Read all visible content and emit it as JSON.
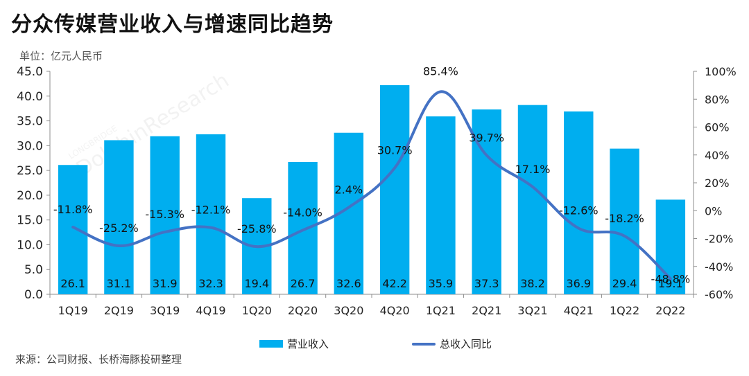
{
  "title": "分众传媒营业收入与增速同比趋势",
  "unit": "单位：亿元人民币",
  "source": "来源：公司财报、长桥海豚投研整理",
  "chart_data": {
    "type": "bar",
    "categories": [
      "1Q19",
      "2Q19",
      "3Q19",
      "4Q19",
      "1Q20",
      "2Q20",
      "3Q20",
      "4Q20",
      "1Q21",
      "2Q21",
      "3Q21",
      "4Q21",
      "1Q22",
      "2Q22"
    ],
    "series": [
      {
        "name": "营业收入",
        "type": "bar",
        "axis": "left",
        "color": "#00aeef",
        "values": [
          26.1,
          31.1,
          31.9,
          32.3,
          19.4,
          26.7,
          32.6,
          42.2,
          35.9,
          37.3,
          38.2,
          36.9,
          29.4,
          19.1
        ],
        "labels": [
          "26.1",
          "31.1",
          "31.9",
          "32.3",
          "19.4",
          "26.7",
          "32.6",
          "42.2",
          "35.9",
          "37.3",
          "38.2",
          "36.9",
          "29.4",
          "19.1"
        ]
      },
      {
        "name": "总收入同比",
        "type": "line",
        "axis": "right",
        "color": "#4472c4",
        "values": [
          -11.8,
          -25.2,
          -15.3,
          -12.1,
          -25.8,
          -14.0,
          2.4,
          30.7,
          85.4,
          39.7,
          17.1,
          -12.6,
          -18.2,
          -48.8
        ],
        "labels": [
          "-11.8%",
          "-25.2%",
          "-15.3%",
          "-12.1%",
          "-25.8%",
          "-14.0%",
          "2.4%",
          "30.7%",
          "85.4%",
          "39.7%",
          "17.1%",
          "-12.6%",
          "-18.2%",
          "-48.8%"
        ]
      }
    ],
    "y_left": {
      "min": 0,
      "max": 45,
      "ticks": [
        "0.0",
        "5.0",
        "10.0",
        "15.0",
        "20.0",
        "25.0",
        "30.0",
        "35.0",
        "40.0",
        "45.0"
      ]
    },
    "y_right": {
      "min": -60,
      "max": 100,
      "ticks": [
        "-60%",
        "-40%",
        "-20%",
        "0%",
        "20%",
        "40%",
        "60%",
        "80%",
        "100%"
      ]
    },
    "legend_position": "bottom",
    "grid": false
  },
  "watermark": {
    "brand": "LONGBRIDGE",
    "text": "DolphinResearch"
  }
}
